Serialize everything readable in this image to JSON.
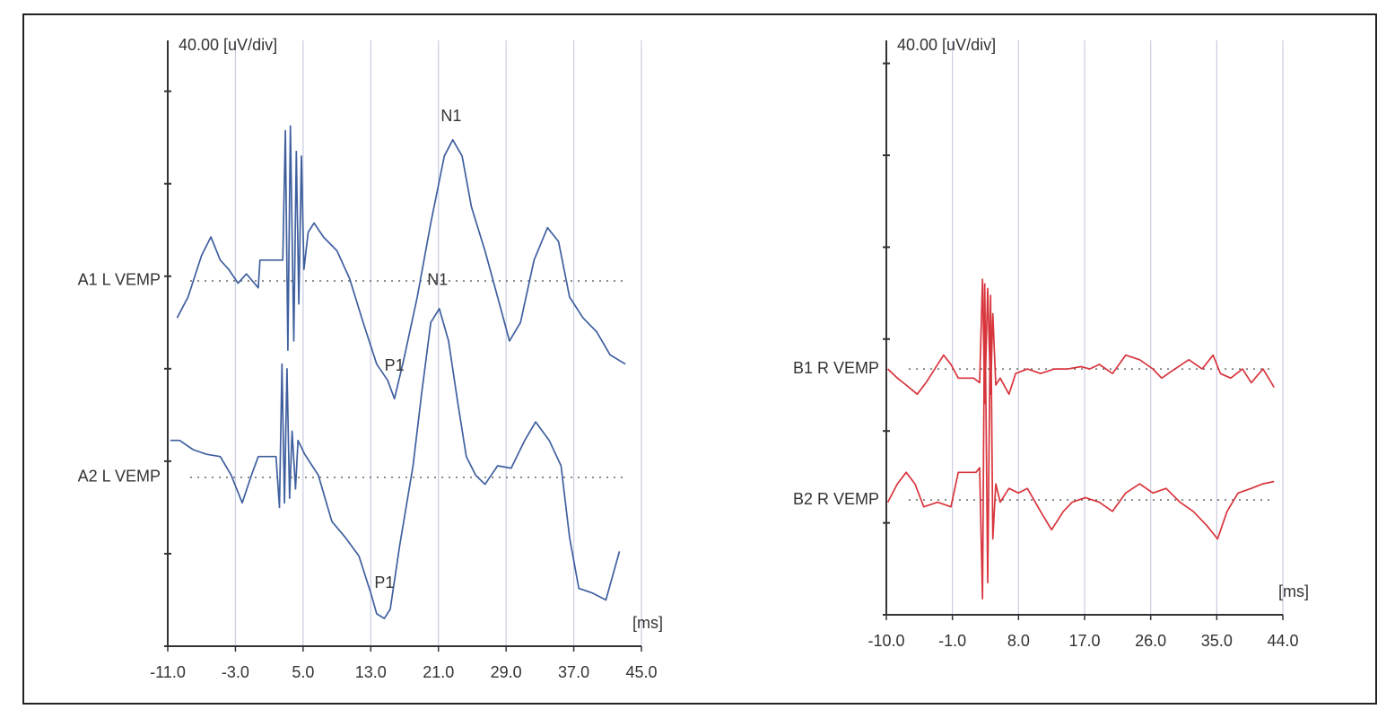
{
  "chart_data": [
    {
      "type": "line",
      "scale_label": "40.00 [uV/div]",
      "x_unit": "[ms]",
      "xlim": [
        -11,
        45
      ],
      "xticks": [
        {
          "value": -11,
          "label": "-11.0"
        },
        {
          "value": -3,
          "label": "-3.0"
        },
        {
          "value": 5,
          "label": "5.0"
        },
        {
          "value": 13,
          "label": "13.0"
        },
        {
          "value": 21,
          "label": "21.0"
        },
        {
          "value": 29,
          "label": "29.0"
        },
        {
          "value": 37,
          "label": "37.0"
        },
        {
          "value": 45,
          "label": "45.0"
        }
      ],
      "ylim": [
        0,
        262
      ],
      "yticks": [
        0,
        40,
        80,
        120,
        160,
        200,
        240
      ],
      "grid": "x",
      "series": [
        {
          "name": "A1 L VEMP",
          "color": "#3f5f9f",
          "baseline": 158,
          "x": [
            -9.9,
            -8.6,
            -7.0,
            -5.9,
            -4.8,
            -3.8,
            -2.7,
            -1.7,
            -0.3,
            -0.1,
            2.6,
            2.9,
            3.2,
            3.5,
            3.9,
            4.2,
            4.5,
            4.8,
            5.1,
            5.6,
            6.3,
            7.4,
            9.0,
            10.5,
            12.1,
            13.7,
            15.0,
            15.8,
            16.9,
            18.5,
            20.1,
            21.7,
            22.7,
            23.8,
            24.9,
            26.5,
            28.0,
            29.4,
            30.7,
            32.3,
            33.9,
            35.2,
            36.5,
            38.1,
            39.7,
            41.3,
            43.1
          ],
          "values": [
            142,
            151,
            169,
            177,
            167,
            163,
            157,
            161,
            155,
            167,
            167,
            223,
            128,
            225,
            132,
            214,
            148,
            212,
            163,
            179,
            183,
            177,
            171,
            159,
            140,
            122,
            115,
            107,
            124,
            151,
            183,
            212,
            219,
            212,
            190,
            171,
            151,
            132,
            140,
            167,
            181,
            175,
            151,
            142,
            136,
            126,
            122
          ]
        },
        {
          "name": "A2 L VEMP",
          "color": "#3f5f9f",
          "baseline": 73,
          "x": [
            -10.7,
            -9.6,
            -8.0,
            -6.4,
            -4.8,
            -3.5,
            -2.2,
            -1.1,
            -0.3,
            1.8,
            2.2,
            2.5,
            2.8,
            3.1,
            3.4,
            3.7,
            4.1,
            4.4,
            5.2,
            6.8,
            8.4,
            10.0,
            11.6,
            13.0,
            13.7,
            14.6,
            15.3,
            16.4,
            18.0,
            19.0,
            20.1,
            21.1,
            22.2,
            23.3,
            24.3,
            25.4,
            26.5,
            28.0,
            29.6,
            31.2,
            32.5,
            34.1,
            35.5,
            36.5,
            37.6,
            39.2,
            40.8,
            42.4
          ],
          "values": [
            89,
            89,
            85,
            83,
            82,
            74,
            62,
            74,
            82,
            82,
            60,
            122,
            62,
            120,
            64,
            93,
            68,
            89,
            83,
            74,
            54,
            47,
            39,
            23,
            14,
            12,
            16,
            43,
            78,
            109,
            140,
            146,
            132,
            105,
            82,
            74,
            70,
            78,
            77,
            89,
            97,
            89,
            78,
            47,
            25,
            23,
            20,
            41
          ]
        }
      ],
      "annotations": [
        {
          "text": "N1",
          "x": 22.5,
          "y": 229
        },
        {
          "text": "N1",
          "x": 20.9,
          "y": 158
        },
        {
          "text": "P1",
          "x": 15.8,
          "y": 121
        },
        {
          "text": "P1",
          "x": 14.6,
          "y": 27
        }
      ]
    },
    {
      "type": "line",
      "scale_label": "40.00 [uV/div]",
      "x_unit": "[ms]",
      "xlim": [
        -10,
        44
      ],
      "xticks": [
        {
          "value": -10,
          "label": "-10.0"
        },
        {
          "value": -1,
          "label": "-1.0"
        },
        {
          "value": 8,
          "label": "8.0"
        },
        {
          "value": 17,
          "label": "17.0"
        },
        {
          "value": 26,
          "label": "26.0"
        },
        {
          "value": 35,
          "label": "35.0"
        },
        {
          "value": 44,
          "label": "44.0"
        }
      ],
      "ylim": [
        0,
        250
      ],
      "yticks": [
        0,
        40,
        80,
        120,
        160,
        200,
        240
      ],
      "grid": "x",
      "series": [
        {
          "name": "B1 R VEMP",
          "color": "#d8343c",
          "baseline": 107,
          "x": [
            -9.8,
            -8.5,
            -7.3,
            -5.8,
            -4.6,
            -3.4,
            -2.2,
            -1.2,
            -0.2,
            1.9,
            2.7,
            3.1,
            3.4,
            3.8,
            4.2,
            4.5,
            4.9,
            5.5,
            6.7,
            7.6,
            9.2,
            11.0,
            12.9,
            14.7,
            16.5,
            17.7,
            19.0,
            20.8,
            22.6,
            24.5,
            26.3,
            27.5,
            29.3,
            31.2,
            33.0,
            34.5,
            35.5,
            36.9,
            38.5,
            39.7,
            41.3,
            42.8
          ],
          "values": [
            107,
            103,
            100,
            96,
            101,
            107,
            113,
            109,
            103,
            103,
            101,
            146,
            92,
            142,
            96,
            131,
            100,
            103,
            96,
            105,
            107,
            105,
            107,
            107,
            108,
            107,
            109,
            105,
            113,
            111,
            107,
            103,
            107,
            111,
            107,
            113,
            105,
            103,
            107,
            101,
            107,
            99
          ]
        },
        {
          "name": "B2 R VEMP",
          "color": "#d8343c",
          "baseline": 50,
          "x": [
            -9.8,
            -8.5,
            -7.3,
            -6.1,
            -4.9,
            -3.0,
            -1.2,
            -0.2,
            2.2,
            2.7,
            3.1,
            3.4,
            3.8,
            4.2,
            4.5,
            4.9,
            5.5,
            6.7,
            8.0,
            9.2,
            11.0,
            12.5,
            14.1,
            15.3,
            17.1,
            19.0,
            20.8,
            22.6,
            24.5,
            26.3,
            28.1,
            30.0,
            31.8,
            33.6,
            35.1,
            36.4,
            37.9,
            39.7,
            41.3,
            42.8
          ],
          "values": [
            49,
            57,
            62,
            57,
            47,
            49,
            47,
            62,
            62,
            64,
            7,
            144,
            14,
            139,
            33,
            57,
            49,
            55,
            53,
            55,
            45,
            37,
            45,
            49,
            51,
            49,
            45,
            53,
            57,
            53,
            55,
            49,
            45,
            39,
            33,
            45,
            53,
            55,
            57,
            58
          ]
        }
      ],
      "annotations": []
    }
  ]
}
